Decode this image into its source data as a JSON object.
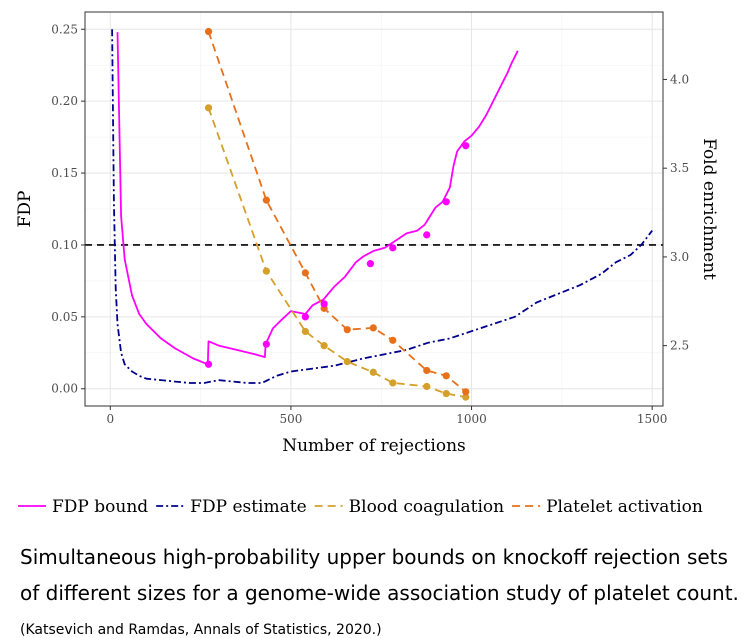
{
  "chart_data": {
    "type": "line",
    "xlabel": "Number of rejections",
    "ylabel": "FDP",
    "y2label": "Fold enrichment",
    "xlim": [
      -70,
      1530
    ],
    "ylim": [
      -0.012,
      0.262
    ],
    "y2lim": [
      2.16,
      4.38
    ],
    "x_ticks": [
      0,
      500,
      1000,
      1500
    ],
    "y_ticks": [
      0.0,
      0.05,
      0.1,
      0.15,
      0.2,
      0.25
    ],
    "y_tick_labels": [
      "0.00",
      "0.05",
      "0.10",
      "0.15",
      "0.20",
      "0.25"
    ],
    "y2_ticks": [
      2.5,
      3.0,
      3.5,
      4.0
    ],
    "y2_tick_labels": [
      "2.5",
      "3.0",
      "3.5",
      "4.0"
    ],
    "grid": true,
    "legend_position": "bottom",
    "hline": {
      "y": 0.1,
      "style": "dashed",
      "color": "#000000"
    },
    "series": [
      {
        "name": "FDP bound",
        "axis": "left",
        "style": "solid",
        "color": "#ff00ff",
        "x": [
          20,
          30,
          40,
          60,
          80,
          100,
          140,
          180,
          230,
          270,
          272,
          300,
          350,
          400,
          428,
          430,
          450,
          470,
          500,
          540,
          560,
          590,
          620,
          650,
          680,
          700,
          730,
          760,
          790,
          820,
          850,
          870,
          880,
          900,
          920,
          940,
          950,
          960,
          980,
          1000,
          1020,
          1040,
          1060,
          1080,
          1100,
          1110,
          1128
        ],
        "y": [
          0.248,
          0.12,
          0.09,
          0.065,
          0.052,
          0.045,
          0.035,
          0.028,
          0.021,
          0.017,
          0.033,
          0.03,
          0.027,
          0.024,
          0.022,
          0.031,
          0.042,
          0.047,
          0.054,
          0.052,
          0.058,
          0.062,
          0.071,
          0.078,
          0.088,
          0.092,
          0.096,
          0.098,
          0.103,
          0.108,
          0.11,
          0.114,
          0.118,
          0.126,
          0.13,
          0.14,
          0.155,
          0.165,
          0.172,
          0.176,
          0.182,
          0.19,
          0.2,
          0.21,
          0.22,
          0.226,
          0.235
        ]
      },
      {
        "name": "FDP estimate",
        "axis": "left",
        "style": "dotdash",
        "color": "#00008b",
        "x": [
          5,
          10,
          15,
          20,
          30,
          40,
          60,
          80,
          100,
          140,
          180,
          220,
          260,
          300,
          340,
          380,
          420,
          460,
          500,
          560,
          620,
          700,
          760,
          820,
          880,
          940,
          1000,
          1060,
          1120,
          1180,
          1240,
          1300,
          1360,
          1400,
          1440,
          1470,
          1500
        ],
        "y": [
          0.25,
          0.13,
          0.07,
          0.045,
          0.025,
          0.017,
          0.012,
          0.009,
          0.007,
          0.006,
          0.005,
          0.004,
          0.004,
          0.006,
          0.005,
          0.004,
          0.004,
          0.009,
          0.012,
          0.014,
          0.016,
          0.021,
          0.024,
          0.027,
          0.032,
          0.035,
          0.04,
          0.045,
          0.05,
          0.06,
          0.066,
          0.072,
          0.08,
          0.088,
          0.093,
          0.1,
          0.11
        ]
      },
      {
        "name": "Blood coagulation",
        "axis": "right",
        "style": "dashed",
        "color": "#d4a02a",
        "markers": true,
        "x": [
          272,
          432,
          540,
          592,
          656,
          728,
          782,
          876,
          930,
          984
        ],
        "y": [
          3.84,
          2.92,
          2.58,
          2.5,
          2.41,
          2.35,
          2.29,
          2.27,
          2.23,
          2.21
        ]
      },
      {
        "name": "Platelet activation",
        "axis": "right",
        "style": "dashed",
        "color": "#e8701a",
        "markers": true,
        "x": [
          272,
          432,
          540,
          592,
          656,
          728,
          782,
          876,
          930,
          984
        ],
        "y": [
          4.27,
          3.32,
          2.91,
          2.71,
          2.59,
          2.6,
          2.53,
          2.36,
          2.33,
          2.24
        ]
      },
      {
        "name": "FDP bound points",
        "axis": "left",
        "style": "none",
        "color": "#ff00ff",
        "markers": true,
        "legend": false,
        "x": [
          272,
          432,
          540,
          592,
          720,
          782,
          876,
          930,
          984
        ],
        "y": [
          0.017,
          0.031,
          0.05,
          0.059,
          0.087,
          0.098,
          0.107,
          0.13,
          0.169
        ]
      }
    ]
  },
  "caption": {
    "line1": "Simultaneous high-probability upper bounds on knockoff rejection sets",
    "line2": "of different sizes for a genome-wide association study of platelet count.",
    "citation": "(Katsevich and Ramdas, Annals of Statistics, 2020.)"
  }
}
